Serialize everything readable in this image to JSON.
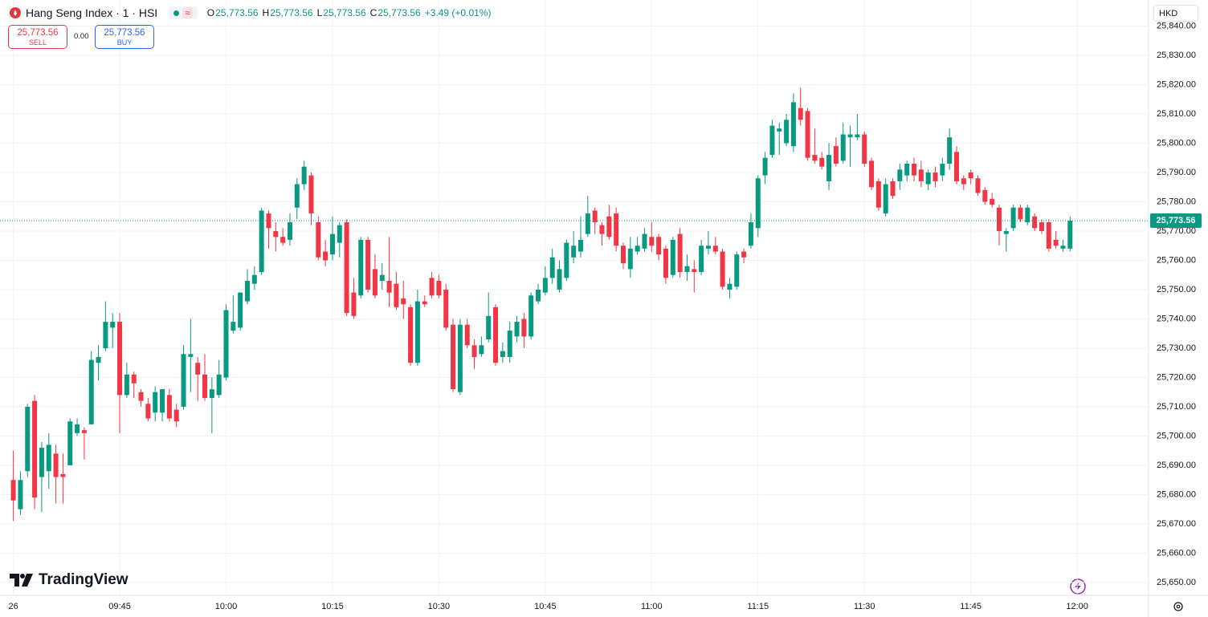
{
  "chart_data": {
    "type": "candlestick",
    "title": "Hang Seng Index · 1 · HSI",
    "ohlc": [
      {
        "key": "O",
        "value": "25,773.56"
      },
      {
        "key": "H",
        "value": "25,773.56"
      },
      {
        "key": "L",
        "value": "25,773.56"
      },
      {
        "key": "C",
        "value": "25,773.56"
      }
    ],
    "change": "+3.49 (+0.01%)",
    "sell": {
      "price": "25,773.56",
      "label": "SELL"
    },
    "spread": "0.00",
    "buy": {
      "price": "25,773.56",
      "label": "BUY"
    },
    "currency": "HKD",
    "brand": "TradingView",
    "up_color": "#089981",
    "down_color": "#f23645",
    "grid": true,
    "last_price": {
      "value": 25773.56,
      "label": "25,773.56"
    },
    "categories": [
      "26",
      null,
      null,
      null,
      null,
      null,
      null,
      null,
      null,
      null,
      null,
      null,
      null,
      null,
      null,
      "09:45",
      null,
      null,
      null,
      null,
      null,
      null,
      null,
      null,
      null,
      null,
      null,
      null,
      null,
      null,
      "10:00",
      null,
      null,
      null,
      null,
      null,
      null,
      null,
      null,
      null,
      null,
      null,
      null,
      null,
      null,
      "10:15",
      null,
      null,
      null,
      null,
      null,
      null,
      null,
      null,
      null,
      null,
      null,
      null,
      null,
      null,
      "10:30",
      null,
      null,
      null,
      null,
      null,
      null,
      null,
      null,
      null,
      null,
      null,
      null,
      null,
      null,
      "10:45",
      null,
      null,
      null,
      null,
      null,
      null,
      null,
      null,
      null,
      null,
      null,
      null,
      null,
      null,
      "11:00",
      null,
      null,
      null,
      null,
      null,
      null,
      null,
      null,
      null,
      null,
      null,
      null,
      null,
      null,
      "11:15",
      null,
      null,
      null,
      null,
      null,
      null,
      null,
      null,
      null,
      null,
      null,
      null,
      null,
      null,
      "11:30",
      null,
      null,
      null,
      null,
      null,
      null,
      null,
      null,
      null,
      null,
      null,
      null,
      null,
      null,
      "11:45",
      null,
      null,
      null,
      null,
      null,
      null,
      null,
      null,
      null,
      null,
      null,
      null,
      null,
      null
    ],
    "next_label": "12:00",
    "open": [
      25685,
      25675,
      25688,
      25712,
      25686,
      25688,
      25694,
      25687,
      25690,
      25701,
      25702,
      25704,
      25725,
      25730,
      25737,
      25739,
      25714,
      25721,
      25715,
      25711,
      25708,
      25708,
      25714,
      25709,
      25710,
      25727,
      25725,
      25721,
      25713,
      25714,
      25720,
      25736,
      25737,
      25746,
      25752,
      25756,
      25776,
      25770,
      25768,
      25767,
      25778,
      25786,
      25789,
      25773,
      25763,
      25762,
      25766,
      25773,
      25749,
      25748,
      25767,
      25757,
      25753,
      25753,
      25752,
      25747,
      25744,
      25725,
      25746,
      25754,
      25753,
      25750,
      25738,
      25715,
      25738,
      25731,
      25728,
      25733,
      25744,
      25727,
      25727,
      25734,
      25740,
      25734,
      25746,
      25749,
      25754,
      25750,
      25754,
      25761,
      25763,
      25769,
      25777,
      25772,
      25775,
      25776,
      25765,
      25757,
      25763,
      25764,
      25768,
      25768,
      25764,
      25755,
      25769,
      25756,
      25757,
      25756,
      25764,
      25765,
      25763,
      25750,
      25751,
      25763,
      25765,
      25771,
      25789,
      25796,
      25804,
      25800,
      25799,
      25812,
      25811,
      25796,
      25795,
      25787,
      25799,
      25794,
      25802,
      25802,
      25803,
      25794,
      25787,
      25776,
      25787,
      25787,
      25789,
      25793,
      25791,
      25786,
      25790,
      25789,
      25793,
      25797,
      25788,
      25790,
      25788,
      25784,
      25781,
      25778,
      25769,
      25771,
      25778,
      25773,
      25775,
      25773,
      25773,
      25767,
      25764,
      25764
    ],
    "high": [
      25695,
      25688,
      25711,
      25714,
      25698,
      25701,
      25697,
      25694,
      25706,
      25706,
      25703,
      25729,
      25731,
      25746,
      25742,
      25742,
      25725,
      25722,
      25716,
      25713,
      25717,
      25716,
      25716,
      25711,
      25731,
      25740,
      25727,
      25728,
      25720,
      25726,
      25745,
      25748,
      25749,
      25757,
      25758,
      25778,
      25777,
      25773,
      25771,
      25776,
      25788,
      25794,
      25790,
      25775,
      25767,
      25775,
      25773,
      25774,
      25754,
      25768,
      25768,
      25762,
      25759,
      25768,
      25756,
      25753,
      25745,
      25750,
      25748,
      25756,
      25755,
      25752,
      25740,
      25740,
      25740,
      25733,
      25734,
      25749,
      25745,
      25732,
      25739,
      25741,
      25742,
      25749,
      25752,
      25758,
      25764,
      25760,
      25767,
      25770,
      25775,
      25782,
      25778,
      25773,
      25779,
      25778,
      25766,
      25768,
      25768,
      25771,
      25773,
      25769,
      25765,
      25768,
      25771,
      25762,
      25760,
      25767,
      25770,
      25768,
      25764,
      25754,
      25763,
      25764,
      25776,
      25789,
      25797,
      25808,
      25807,
      25810,
      25817,
      25819,
      25812,
      25805,
      25797,
      25800,
      25802,
      25807,
      25806,
      25810,
      25804,
      25795,
      25788,
      25788,
      25788,
      25793,
      25794,
      25795,
      25794,
      25791,
      25792,
      25795,
      25805,
      25799,
      25789,
      25791,
      25789,
      25785,
      25783,
      25779,
      25771,
      25779,
      25779,
      25779,
      25776,
      25774,
      25774,
      25770,
      25767,
      25775
    ],
    "low": [
      25671,
      25673,
      25686,
      25675,
      25674,
      25682,
      25677,
      25677,
      25690,
      25700,
      25692,
      25704,
      25719,
      25729,
      25730,
      25701,
      25713,
      25713,
      25710,
      25705,
      25705,
      25705,
      25705,
      25703,
      25709,
      25715,
      25712,
      25712,
      25701,
      25713,
      25719,
      25735,
      25736,
      25745,
      25750,
      25755,
      25764,
      25763,
      25765,
      25765,
      25774,
      25784,
      25772,
      25760,
      25758,
      25760,
      25761,
      25741,
      25740,
      25747,
      25749,
      25747,
      25750,
      25744,
      25743,
      25740,
      25724,
      25724,
      25744,
      25747,
      25747,
      25736,
      25715,
      25714,
      25730,
      25723,
      25727,
      25732,
      25724,
      25725,
      25725,
      25732,
      25730,
      25733,
      25745,
      25748,
      25752,
      25749,
      25753,
      25759,
      25761,
      25768,
      25769,
      25765,
      25767,
      25763,
      25757,
      25754,
      25762,
      25763,
      25763,
      25760,
      25752,
      25754,
      25754,
      25753,
      25749,
      25755,
      25762,
      25762,
      25750,
      25747,
      25750,
      25759,
      25764,
      25768,
      25786,
      25795,
      25796,
      25799,
      25797,
      25806,
      25794,
      25793,
      25791,
      25784,
      25792,
      25793,
      25792,
      25801,
      25792,
      25784,
      25777,
      25775,
      25781,
      25784,
      25787,
      25787,
      25785,
      25784,
      25785,
      25787,
      25791,
      25786,
      25784,
      25786,
      25782,
      25779,
      25778,
      25765,
      25763,
      25770,
      25773,
      25772,
      25770,
      25769,
      25763,
      25764,
      25763,
      25763
    ],
    "close": [
      25678,
      25685,
      25710,
      25679,
      25696,
      25697,
      25686,
      25686,
      25705,
      25704,
      25701,
      25726,
      25727,
      25739,
      25739,
      25714,
      25721,
      25718,
      25712,
      25706,
      25715,
      25716,
      25706,
      25705,
      25728,
      25728,
      25721,
      25713,
      25716,
      25721,
      25743,
      25739,
      25749,
      25753,
      25755,
      25777,
      25771,
      25768,
      25766,
      25773,
      25786,
      25792,
      25776,
      25761,
      25760,
      25769,
      25772,
      25742,
      25741,
      25767,
      25750,
      25748,
      25755,
      25749,
      25744,
      25745,
      25725,
      25746,
      25745,
      25748,
      25748,
      25737,
      25716,
      25738,
      25731,
      25727,
      25731,
      25741,
      25725,
      25729,
      25736,
      25739,
      25734,
      25748,
      25750,
      25754,
      25761,
      25757,
      25766,
      25765,
      25767,
      25776,
      25773,
      25769,
      25768,
      25765,
      25759,
      25764,
      25765,
      25769,
      25765,
      25762,
      25754,
      25767,
      25756,
      25758,
      25756,
      25765,
      25765,
      25763,
      25751,
      25752,
      25762,
      25761,
      25773,
      25788,
      25795,
      25806,
      25805,
      25808,
      25814,
      25808,
      25795,
      25794,
      25792,
      25796,
      25793,
      25803,
      25803,
      25803,
      25793,
      25785,
      25778,
      25786,
      25782,
      25791,
      25793,
      25789,
      25787,
      25790,
      25787,
      25793,
      25802,
      25787,
      25786,
      25788,
      25783,
      25780,
      25779,
      25770,
      25770,
      25778,
      25774,
      25778,
      25771,
      25770,
      25764,
      25765,
      25765,
      25773.56
    ],
    "ylim": [
      25645.6,
      25848.9
    ],
    "yticks": [
      {
        "value": 25650,
        "label": "25,650.00"
      },
      {
        "value": 25660,
        "label": "25,660.00"
      },
      {
        "value": 25670,
        "label": "25,670.00"
      },
      {
        "value": 25680,
        "label": "25,680.00"
      },
      {
        "value": 25690,
        "label": "25,690.00"
      },
      {
        "value": 25700,
        "label": "25,700.00"
      },
      {
        "value": 25710,
        "label": "25,710.00"
      },
      {
        "value": 25720,
        "label": "25,720.00"
      },
      {
        "value": 25730,
        "label": "25,730.00"
      },
      {
        "value": 25740,
        "label": "25,740.00"
      },
      {
        "value": 25750,
        "label": "25,750.00"
      },
      {
        "value": 25760,
        "label": "25,760.00"
      },
      {
        "value": 25770,
        "label": "25,770.00"
      },
      {
        "value": 25780,
        "label": "25,780.00"
      },
      {
        "value": 25790,
        "label": "25,790.00"
      },
      {
        "value": 25800,
        "label": "25,800.00"
      },
      {
        "value": 25810,
        "label": "25,810.00"
      },
      {
        "value": 25820,
        "label": "25,820.00"
      },
      {
        "value": 25830,
        "label": "25,830.00"
      },
      {
        "value": 25840,
        "label": "25,840.00"
      }
    ]
  }
}
